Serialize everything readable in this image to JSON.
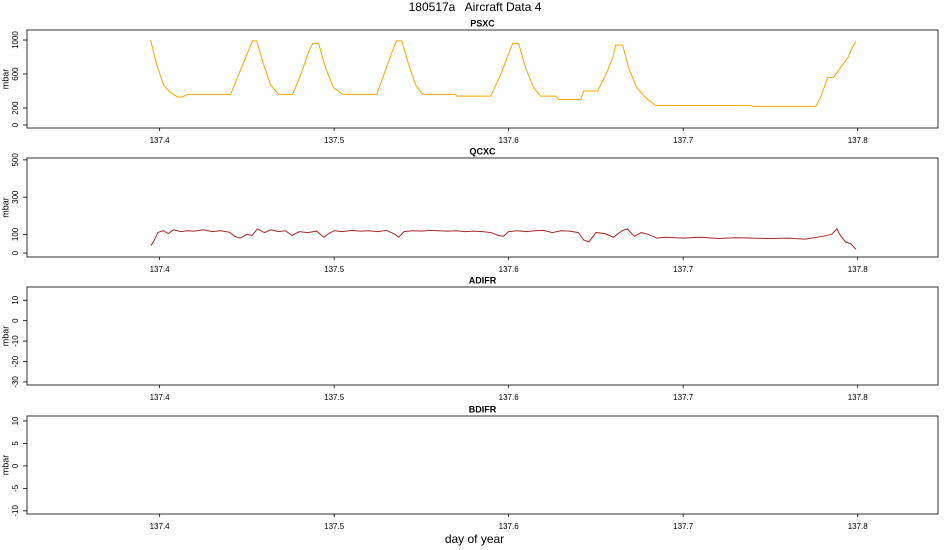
{
  "title": "180517a   Aircraft Data 4",
  "chart_data": [
    {
      "type": "line",
      "title": "PSXC",
      "ylabel": "mbar",
      "color": "#ffa500",
      "xlim": [
        137.324,
        137.846
      ],
      "xticks": [
        137.4,
        137.5,
        137.6,
        137.7,
        137.8
      ],
      "ylim": [
        -35,
        1118
      ],
      "yticks": [
        0,
        200,
        600,
        1000
      ],
      "x": [
        137.3948,
        137.3983,
        137.4023,
        137.4063,
        137.4103,
        137.4132,
        137.416,
        137.4407,
        137.4464,
        137.451,
        137.4533,
        137.4556,
        137.4596,
        137.4636,
        137.4682,
        137.4762,
        137.4808,
        137.4854,
        137.4877,
        137.4911,
        137.4951,
        137.4997,
        137.5049,
        137.5244,
        137.5295,
        137.5341,
        137.5358,
        137.5387,
        137.5427,
        137.5467,
        137.5507,
        137.5696,
        137.5702,
        137.5897,
        137.5954,
        137.6,
        137.6023,
        137.6057,
        137.6097,
        137.6143,
        137.6183,
        137.6269,
        137.6287,
        137.6413,
        137.643,
        137.651,
        137.6556,
        137.6596,
        137.6613,
        137.6653,
        137.6688,
        137.6734,
        137.6785,
        137.6842,
        137.7387,
        137.7398,
        137.7759,
        137.7788,
        137.7828,
        137.7862,
        137.7903,
        137.7943,
        137.7971,
        137.7989
      ],
      "values": [
        1000,
        710,
        470,
        380,
        330,
        330,
        360,
        360,
        650,
        880,
        990,
        990,
        710,
        470,
        360,
        360,
        590,
        860,
        960,
        960,
        670,
        440,
        360,
        360,
        650,
        910,
        990,
        990,
        710,
        470,
        360,
        360,
        340,
        340,
        590,
        840,
        960,
        960,
        670,
        440,
        340,
        340,
        300,
        300,
        400,
        400,
        590,
        790,
        940,
        940,
        670,
        440,
        320,
        230,
        230,
        220,
        220,
        330,
        560,
        560,
        680,
        790,
        920,
        980
      ]
    },
    {
      "type": "line",
      "title": "QCXC",
      "ylabel": "mbar",
      "color": "#a52a2a",
      "xlim": [
        137.324,
        137.846
      ],
      "xticks": [
        137.4,
        137.5,
        137.6,
        137.7,
        137.8
      ],
      "ylim": [
        -21,
        510
      ],
      "yticks": [
        0,
        100,
        300,
        500
      ],
      "x": [
        137.395,
        137.397,
        137.399,
        137.402,
        137.405,
        137.408,
        137.412,
        137.416,
        137.42,
        137.425,
        137.43,
        137.435,
        137.44,
        137.443,
        137.446,
        137.45,
        137.453,
        137.456,
        137.46,
        137.464,
        137.468,
        137.472,
        137.476,
        137.48,
        137.485,
        137.49,
        137.494,
        137.497,
        137.5,
        137.505,
        137.51,
        137.515,
        137.52,
        137.525,
        137.53,
        137.535,
        137.537,
        137.54,
        137.545,
        137.55,
        137.555,
        137.56,
        137.565,
        137.57,
        137.575,
        137.58,
        137.585,
        137.59,
        137.594,
        137.597,
        137.6,
        137.605,
        137.61,
        137.615,
        137.62,
        137.625,
        137.63,
        137.635,
        137.64,
        137.643,
        137.646,
        137.65,
        137.655,
        137.66,
        137.665,
        137.668,
        137.672,
        137.676,
        137.68,
        137.685,
        137.69,
        137.7,
        137.71,
        137.72,
        137.73,
        137.74,
        137.75,
        137.76,
        137.77,
        137.78,
        137.785,
        137.788,
        137.79,
        137.793,
        137.796,
        137.799
      ],
      "values": [
        40,
        70,
        110,
        120,
        105,
        125,
        115,
        120,
        118,
        125,
        115,
        120,
        112,
        90,
        80,
        100,
        95,
        130,
        110,
        125,
        115,
        120,
        95,
        115,
        110,
        118,
        85,
        105,
        120,
        115,
        122,
        118,
        120,
        115,
        122,
        100,
        85,
        115,
        120,
        118,
        122,
        120,
        118,
        120,
        115,
        118,
        115,
        110,
        95,
        90,
        115,
        120,
        115,
        120,
        122,
        110,
        120,
        118,
        110,
        70,
        60,
        110,
        105,
        85,
        120,
        130,
        90,
        110,
        100,
        80,
        85,
        80,
        85,
        78,
        82,
        80,
        78,
        80,
        75,
        90,
        100,
        130,
        95,
        60,
        50,
        20
      ]
    },
    {
      "type": "line",
      "title": "ADIFR",
      "ylabel": "mbar",
      "xlim": [
        137.324,
        137.846
      ],
      "xticks": [
        137.4,
        137.5,
        137.6,
        137.7,
        137.8
      ],
      "ylim": [
        -31.5,
        16.5
      ],
      "yticks": [
        -30,
        -20,
        -10,
        0,
        10
      ]
    },
    {
      "type": "line",
      "title": "BDIFR",
      "ylabel": "mbar",
      "xlabel": "day of year",
      "xlim": [
        137.324,
        137.846
      ],
      "xticks": [
        137.4,
        137.5,
        137.6,
        137.7,
        137.8
      ],
      "ylim": [
        -10.7,
        11.1
      ],
      "yticks": [
        -10,
        -5,
        0,
        5,
        10
      ]
    }
  ]
}
